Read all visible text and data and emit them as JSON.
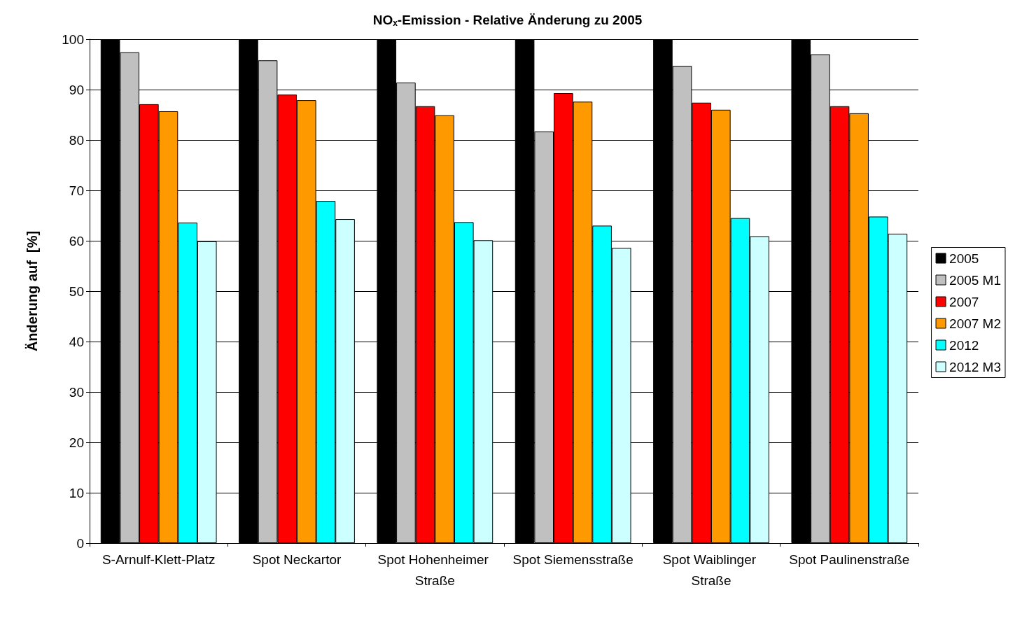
{
  "chart_data": {
    "type": "bar",
    "title": "NO$_{x}$-Emission - Relative Änderung zu 2005",
    "ylabel": "Änderung auf  [%]",
    "categories": [
      "S-Arnulf-Klett-Platz",
      "Spot Neckartor",
      "Spot Hohenheimer Straße",
      "Spot Siemensstraße",
      "Spot Waiblinger Straße",
      "Spot Paulinenstraße"
    ],
    "series": [
      {
        "name": "2005",
        "color": "#000000",
        "values": [
          100,
          100,
          100,
          100,
          100,
          100
        ]
      },
      {
        "name": "2005 M1",
        "color": "#c0c0c0",
        "values": [
          97.4,
          95.8,
          91.4,
          81.7,
          94.7,
          97.0
        ]
      },
      {
        "name": "2007",
        "color": "#ff0000",
        "values": [
          87.1,
          89.0,
          86.7,
          89.3,
          87.4,
          86.7
        ]
      },
      {
        "name": "2007 M2",
        "color": "#ff9900",
        "values": [
          85.7,
          87.9,
          84.9,
          87.6,
          86.0,
          85.3
        ]
      },
      {
        "name": "2012",
        "color": "#00ffff",
        "values": [
          63.6,
          67.9,
          63.7,
          63.0,
          64.5,
          64.8
        ]
      },
      {
        "name": "2012 M3",
        "color": "#ccffff",
        "values": [
          59.9,
          64.3,
          60.1,
          58.6,
          60.9,
          61.4
        ]
      }
    ],
    "ylim": [
      0,
      100
    ],
    "yticks": [
      0,
      10,
      20,
      30,
      40,
      50,
      60,
      70,
      80,
      90,
      100
    ],
    "grid": "y",
    "legend": "right"
  }
}
